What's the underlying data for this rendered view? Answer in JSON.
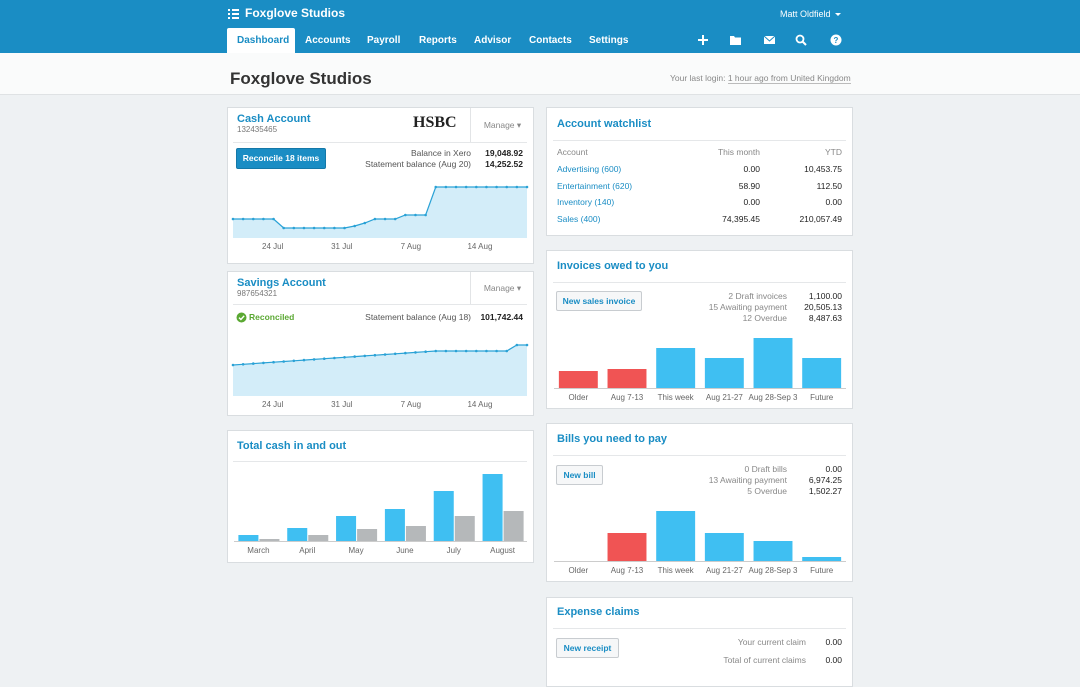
{
  "header": {
    "org": "Foxglove Studios",
    "user": "Matt Oldfield",
    "nav": [
      "Dashboard",
      "Accounts",
      "Payroll",
      "Reports",
      "Advisor",
      "Contacts",
      "Settings"
    ]
  },
  "subheader": {
    "title": "Foxglove Studios",
    "login_label": "Your last login:",
    "login_link": "1 hour ago from United Kingdom"
  },
  "cash_account": {
    "title": "Cash Account",
    "number": "132435465",
    "bank": "HSBC",
    "manage": "Manage",
    "button": "Reconcile 18 items",
    "balances": [
      {
        "label": "Balance in Xero",
        "value": "19,048.92"
      },
      {
        "label": "Statement balance (Aug 20)",
        "value": "14,252.52"
      }
    ],
    "chart": {
      "type": "line",
      "color": "#2aa2d6",
      "fill": "#d3edf9",
      "x_labels": [
        "24 Jul",
        "31 Jul",
        "7 Aug",
        "14 Aug"
      ],
      "values": [
        19,
        19,
        19,
        19,
        19,
        10,
        10,
        10,
        10,
        10,
        10,
        10,
        12,
        15,
        19,
        19,
        19,
        23,
        23,
        23,
        51,
        51,
        51,
        51,
        51,
        51,
        51,
        51,
        51,
        51
      ]
    }
  },
  "savings_account": {
    "title": "Savings Account",
    "number": "987654321",
    "manage": "Manage",
    "status": "Reconciled",
    "balance": {
      "label": "Statement balance (Aug 18)",
      "value": "101,742.44"
    },
    "chart": {
      "type": "line",
      "color": "#2aa2d6",
      "fill": "#d3edf9",
      "x_labels": [
        "24 Jul",
        "31 Jul",
        "7 Aug",
        "14 Aug"
      ],
      "values": [
        31,
        31.7,
        32.4,
        33.1,
        33.8,
        34.5,
        35.2,
        35.9,
        36.6,
        37.3,
        38,
        38.7,
        39.4,
        40.1,
        40.8,
        41.5,
        42.2,
        42.9,
        43.6,
        44.3,
        45,
        45,
        45,
        45,
        45,
        45,
        45,
        45,
        51,
        51
      ]
    }
  },
  "cash_in_out": {
    "title": "Total cash in and out",
    "chart": {
      "type": "bar",
      "categories": [
        "March",
        "April",
        "May",
        "June",
        "July",
        "August"
      ],
      "series": [
        {
          "color": "#3fbff2",
          "values": [
            6,
            13,
            25,
            32,
            50,
            67
          ]
        },
        {
          "color": "#b5b8ba",
          "values": [
            2,
            6,
            12,
            15,
            25,
            30
          ]
        }
      ]
    }
  },
  "watchlist": {
    "title": "Account watchlist",
    "columns": [
      "Account",
      "This month",
      "YTD"
    ],
    "rows": [
      [
        "Advertising (600)",
        "0.00",
        "10,453.75"
      ],
      [
        "Entertainment (620)",
        "58.90",
        "112.50"
      ],
      [
        "Inventory (140)",
        "0.00",
        "0.00"
      ],
      [
        "Sales (400)",
        "74,395.45",
        "210,057.49"
      ]
    ]
  },
  "invoices": {
    "title": "Invoices owed to you",
    "button": "New sales invoice",
    "summary": [
      {
        "label": "2 Draft invoices",
        "value": "1,100.00"
      },
      {
        "label": "15 Awaiting payment",
        "value": "20,505.13"
      },
      {
        "label": "12 Overdue",
        "value": "8,487.63"
      }
    ],
    "chart": {
      "type": "bar",
      "categories": [
        "Older",
        "Aug 7-13",
        "This week",
        "Aug 21-27",
        "Aug 28-Sep 3",
        "Future"
      ],
      "values": [
        17,
        19,
        40,
        30,
        50,
        30
      ],
      "colors": [
        "#f05454",
        "#f05454",
        "#3fbff2",
        "#3fbff2",
        "#3fbff2",
        "#3fbff2"
      ]
    }
  },
  "bills": {
    "title": "Bills you need to pay",
    "button": "New bill",
    "summary": [
      {
        "label": "0 Draft bills",
        "value": "0.00"
      },
      {
        "label": "13 Awaiting payment",
        "value": "6,974.25"
      },
      {
        "label": "5 Overdue",
        "value": "1,502.27"
      }
    ],
    "chart": {
      "type": "bar",
      "categories": [
        "Older",
        "Aug 7-13",
        "This week",
        "Aug 21-27",
        "Aug 28-Sep 3",
        "Future"
      ],
      "values": [
        0,
        28,
        50,
        28,
        20,
        4
      ],
      "colors": [
        "#f05454",
        "#f05454",
        "#3fbff2",
        "#3fbff2",
        "#3fbff2",
        "#3fbff2"
      ]
    }
  },
  "expenses": {
    "title": "Expense claims",
    "button": "New receipt",
    "summary": [
      {
        "label": "Your current claim",
        "value": "0.00"
      },
      {
        "label": "Total of current claims",
        "value": "0.00"
      }
    ]
  }
}
